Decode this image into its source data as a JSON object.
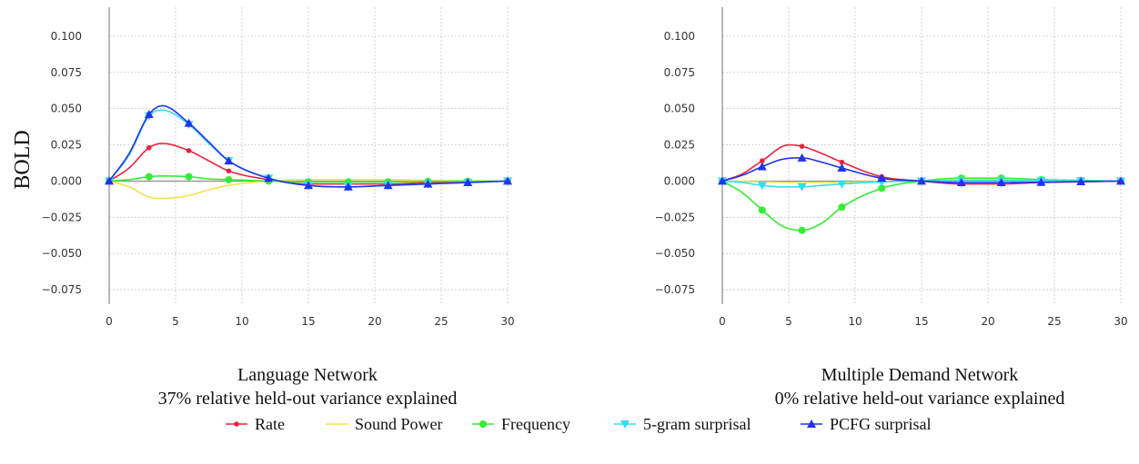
{
  "figure": {
    "ylabel": "BOLD",
    "legend": [
      {
        "label": "Rate",
        "color": "#f0203c",
        "marker": "circle-small"
      },
      {
        "label": "Sound Power",
        "color": "#f2e24a",
        "marker": "none"
      },
      {
        "label": "Frequency",
        "color": "#33ee33",
        "marker": "circle"
      },
      {
        "label": "5-gram surprisal",
        "color": "#33ddee",
        "marker": "triangle-down"
      },
      {
        "label": "PCFG surprisal",
        "color": "#2233ee",
        "marker": "triangle-up"
      }
    ]
  },
  "chart_data": [
    {
      "type": "line",
      "title": "Language Network",
      "subtitle": "37% relative held-out variance explained",
      "ylabel": "BOLD",
      "xlim": [
        0,
        30
      ],
      "ylim": [
        -0.085,
        0.12
      ],
      "x_ticks": [
        0,
        5,
        10,
        15,
        20,
        25,
        30
      ],
      "y_ticks": [
        -0.075,
        -0.05,
        -0.025,
        0.0,
        0.025,
        0.05,
        0.075,
        0.1
      ],
      "y_tick_labels": [
        "−0.075",
        "−0.050",
        "−0.025",
        "0.000",
        "0.025",
        "0.050",
        "0.075",
        "0.100"
      ],
      "grid": true,
      "series": [
        {
          "name": "Rate",
          "color": "#f0203c",
          "marker": "circle-small",
          "x": [
            0,
            1.5,
            3,
            4,
            6,
            7.5,
            9,
            12,
            15,
            18,
            21,
            24,
            27,
            30
          ],
          "y": [
            0,
            0.009,
            0.023,
            0.026,
            0.021,
            0.014,
            0.007,
            0.001,
            -0.002,
            -0.002,
            -0.002,
            -0.001,
            -0.0005,
            0
          ],
          "marker_x": [
            0,
            3,
            6,
            9,
            12,
            15,
            18,
            21,
            24,
            27,
            30
          ]
        },
        {
          "name": "Sound Power",
          "color": "#f2e24a",
          "marker": "none",
          "x": [
            0,
            1.5,
            3,
            4,
            6,
            7.5,
            9,
            12,
            15,
            18,
            21,
            24,
            27,
            30
          ],
          "y": [
            0,
            -0.004,
            -0.011,
            -0.012,
            -0.01,
            -0.006,
            -0.003,
            0,
            0.001,
            0.001,
            0.001,
            0.0005,
            0.0002,
            0
          ],
          "marker_x": []
        },
        {
          "name": "Frequency",
          "color": "#33ee33",
          "marker": "circle",
          "x": [
            0,
            1.5,
            3,
            4,
            6,
            7.5,
            9,
            12,
            15,
            18,
            21,
            24,
            27,
            30
          ],
          "y": [
            0,
            0.001,
            0.003,
            0.0035,
            0.003,
            0.0015,
            0.001,
            0,
            -0.0005,
            -0.0005,
            -0.0005,
            -0.0002,
            -0.0001,
            0
          ],
          "marker_x": [
            0,
            3,
            6,
            9,
            12,
            15,
            18,
            21,
            24,
            27,
            30
          ]
        },
        {
          "name": "5-gram surprisal",
          "color": "#33ddee",
          "marker": "triangle-down",
          "x": [
            0,
            1.5,
            3,
            4,
            6,
            7.5,
            9,
            12,
            15,
            18,
            21,
            24,
            27,
            30
          ],
          "y": [
            0,
            0.018,
            0.045,
            0.049,
            0.039,
            0.026,
            0.014,
            0.002,
            -0.003,
            -0.004,
            -0.003,
            -0.002,
            -0.001,
            0
          ],
          "marker_x": [
            0,
            3,
            6,
            9,
            12,
            15,
            18,
            21,
            24,
            27,
            30
          ]
        },
        {
          "name": "PCFG surprisal",
          "color": "#2233ee",
          "marker": "triangle-up",
          "x": [
            0,
            1.5,
            3,
            4,
            6,
            7.5,
            9,
            12,
            15,
            18,
            21,
            24,
            27,
            30
          ],
          "y": [
            0,
            0.019,
            0.046,
            0.052,
            0.04,
            0.027,
            0.014,
            0.002,
            -0.003,
            -0.004,
            -0.003,
            -0.002,
            -0.001,
            0
          ],
          "marker_x": [
            0,
            3,
            6,
            9,
            12,
            15,
            18,
            21,
            24,
            27,
            30
          ]
        }
      ]
    },
    {
      "type": "line",
      "title": "Multiple Demand Network",
      "subtitle": "0% relative held-out variance explained",
      "ylabel": "",
      "xlim": [
        0,
        30
      ],
      "ylim": [
        -0.085,
        0.12
      ],
      "x_ticks": [
        0,
        5,
        10,
        15,
        20,
        25,
        30
      ],
      "y_ticks": [
        -0.075,
        -0.05,
        -0.025,
        0.0,
        0.025,
        0.05,
        0.075,
        0.1
      ],
      "y_tick_labels": [
        "−0.075",
        "−0.050",
        "−0.025",
        "0.000",
        "0.025",
        "0.050",
        "0.075",
        "0.100"
      ],
      "grid": true,
      "series": [
        {
          "name": "Rate",
          "color": "#f0203c",
          "marker": "circle-small",
          "x": [
            0,
            1.5,
            3,
            5,
            6,
            7.5,
            9,
            12,
            15,
            18,
            21,
            24,
            27,
            30
          ],
          "y": [
            0,
            0.005,
            0.014,
            0.025,
            0.024,
            0.019,
            0.013,
            0.003,
            0,
            -0.002,
            -0.002,
            -0.001,
            -0.0005,
            0
          ],
          "marker_x": [
            0,
            3,
            6,
            9,
            12,
            15,
            18,
            21,
            24,
            27,
            30
          ]
        },
        {
          "name": "Sound Power",
          "color": "#f2e24a",
          "marker": "none",
          "x": [
            0,
            3,
            6,
            9,
            12,
            15,
            18,
            21,
            24,
            27,
            30
          ],
          "y": [
            0,
            -0.0005,
            -0.001,
            -0.0008,
            -0.0003,
            0,
            0.0003,
            0.0003,
            0.0002,
            0.0001,
            0
          ],
          "marker_x": []
        },
        {
          "name": "Frequency",
          "color": "#33ee33",
          "marker": "circle",
          "x": [
            0,
            1.5,
            3,
            4.5,
            6,
            7.5,
            9,
            12,
            15,
            18,
            21,
            24,
            27,
            30
          ],
          "y": [
            0,
            -0.008,
            -0.02,
            -0.031,
            -0.034,
            -0.029,
            -0.018,
            -0.005,
            0,
            0.002,
            0.002,
            0.001,
            0.0005,
            0
          ],
          "marker_x": [
            0,
            3,
            6,
            9,
            12,
            15,
            18,
            21,
            24,
            27,
            30
          ]
        },
        {
          "name": "5-gram surprisal",
          "color": "#33ddee",
          "marker": "triangle-down",
          "x": [
            0,
            1.5,
            3,
            4.5,
            6,
            7.5,
            9,
            12,
            15,
            18,
            21,
            24,
            27,
            30
          ],
          "y": [
            0,
            -0.001,
            -0.003,
            -0.004,
            -0.004,
            -0.003,
            -0.002,
            -0.0005,
            0,
            0.0005,
            0.0005,
            0.0003,
            0.0001,
            0
          ],
          "marker_x": [
            0,
            3,
            6,
            9,
            12,
            15,
            18,
            21,
            24,
            27,
            30
          ]
        },
        {
          "name": "PCFG surprisal",
          "color": "#2233ee",
          "marker": "triangle-up",
          "x": [
            0,
            1.5,
            3,
            4.5,
            6,
            7.5,
            9,
            12,
            15,
            18,
            21,
            24,
            27,
            30
          ],
          "y": [
            0,
            0.004,
            0.01,
            0.015,
            0.016,
            0.013,
            0.009,
            0.002,
            0,
            -0.001,
            -0.001,
            -0.0008,
            -0.0004,
            0
          ],
          "marker_x": [
            0,
            3,
            6,
            9,
            12,
            15,
            18,
            21,
            24,
            27,
            30
          ]
        }
      ]
    }
  ]
}
